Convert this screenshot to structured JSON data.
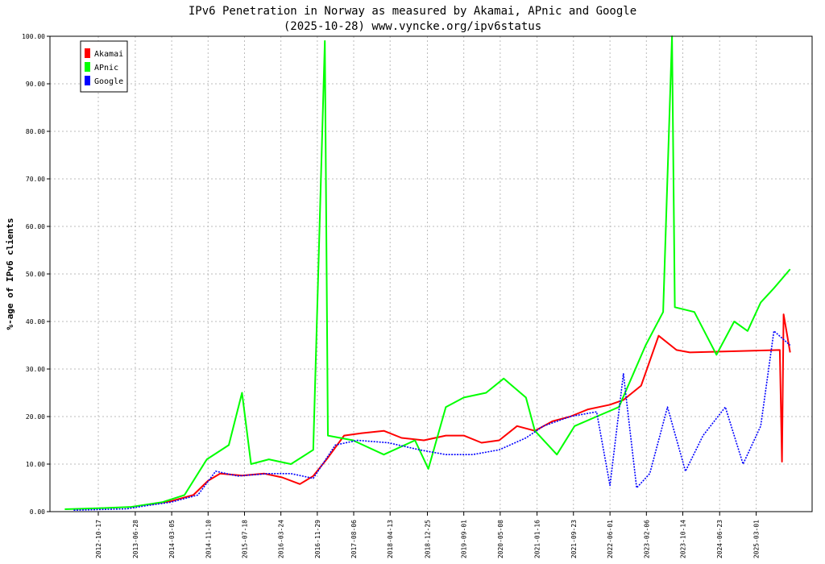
{
  "chart_data": {
    "type": "line",
    "title": "IPv6 Penetration in Norway as measured by Akamai, APnic and Google",
    "subtitle": "(2025-10-28) www.vyncke.org/ipv6status",
    "ylabel": "%-age of IPv6 clients",
    "xlabel": "",
    "ylim": [
      0,
      100
    ],
    "xlim": [
      "2011-11-20",
      "2026-03-20"
    ],
    "grid": true,
    "legend_position": "top-left",
    "y_ticks": [
      "0.00",
      "10.00",
      "20.00",
      "30.00",
      "40.00",
      "50.00",
      "60.00",
      "70.00",
      "80.00",
      "90.00",
      "100.00"
    ],
    "x_ticks": [
      "2012-10-17",
      "2013-06-28",
      "2014-03-05",
      "2014-11-10",
      "2015-07-18",
      "2016-03-24",
      "2016-11-29",
      "2017-08-06",
      "2018-04-13",
      "2018-12-25",
      "2019-09-01",
      "2020-05-08",
      "2021-01-16",
      "2021-09-23",
      "2022-06-01",
      "2023-02-06",
      "2023-10-14",
      "2024-06-23",
      "2025-03-01"
    ],
    "series": [
      {
        "name": "Akamai",
        "color": "#ff0000",
        "points": [
          [
            "2013-10-01",
            1.5
          ],
          [
            "2014-03-01",
            2.2
          ],
          [
            "2014-08-01",
            3.5
          ],
          [
            "2014-11-10",
            6.5
          ],
          [
            "2015-02-01",
            8.0
          ],
          [
            "2015-07-01",
            7.6
          ],
          [
            "2015-12-01",
            8.0
          ],
          [
            "2016-04-01",
            7.2
          ],
          [
            "2016-08-01",
            5.8
          ],
          [
            "2016-11-01",
            7.5
          ],
          [
            "2017-02-01",
            11.0
          ],
          [
            "2017-06-01",
            16.0
          ],
          [
            "2017-10-01",
            16.5
          ],
          [
            "2018-03-01",
            17.0
          ],
          [
            "2018-07-01",
            15.5
          ],
          [
            "2018-12-01",
            15.0
          ],
          [
            "2019-05-01",
            16.0
          ],
          [
            "2019-09-01",
            16.0
          ],
          [
            "2020-01-01",
            14.5
          ],
          [
            "2020-05-01",
            15.0
          ],
          [
            "2020-09-01",
            18.0
          ],
          [
            "2021-01-01",
            17.0
          ],
          [
            "2021-05-01",
            19.0
          ],
          [
            "2021-09-01",
            20.0
          ],
          [
            "2022-01-01",
            21.5
          ],
          [
            "2022-06-01",
            22.5
          ],
          [
            "2022-09-01",
            23.5
          ],
          [
            "2023-01-01",
            26.5
          ],
          [
            "2023-05-01",
            37.0
          ],
          [
            "2023-09-01",
            34.0
          ],
          [
            "2023-12-01",
            33.5
          ],
          [
            "2025-08-10",
            34.0
          ],
          [
            "2025-08-25",
            10.5
          ],
          [
            "2025-09-05",
            41.5
          ],
          [
            "2025-10-20",
            33.5
          ]
        ]
      },
      {
        "name": "APnic",
        "color": "#00ff00",
        "points": [
          [
            "2012-03-01",
            0.5
          ],
          [
            "2012-10-01",
            0.7
          ],
          [
            "2013-06-01",
            1.0
          ],
          [
            "2014-01-01",
            2.0
          ],
          [
            "2014-06-01",
            3.5
          ],
          [
            "2014-11-01",
            11.0
          ],
          [
            "2015-04-01",
            14.0
          ],
          [
            "2015-07-01",
            25.0
          ],
          [
            "2015-09-01",
            10.0
          ],
          [
            "2016-01-01",
            11.0
          ],
          [
            "2016-06-01",
            10.0
          ],
          [
            "2016-11-01",
            13.0
          ],
          [
            "2017-01-20",
            99.0
          ],
          [
            "2017-02-10",
            16.0
          ],
          [
            "2017-08-01",
            15.0
          ],
          [
            "2018-03-01",
            12.0
          ],
          [
            "2018-10-01",
            15.0
          ],
          [
            "2019-01-01",
            9.0
          ],
          [
            "2019-05-01",
            22.0
          ],
          [
            "2019-09-01",
            24.0
          ],
          [
            "2020-02-01",
            25.0
          ],
          [
            "2020-06-01",
            28.0
          ],
          [
            "2020-11-01",
            24.0
          ],
          [
            "2021-01-01",
            17.0
          ],
          [
            "2021-06-01",
            12.0
          ],
          [
            "2021-10-01",
            18.0
          ],
          [
            "2022-03-01",
            20.0
          ],
          [
            "2022-08-01",
            22.0
          ],
          [
            "2023-02-01",
            35.0
          ],
          [
            "2023-06-01",
            42.0
          ],
          [
            "2023-08-01",
            100.0
          ],
          [
            "2023-08-20",
            43.0
          ],
          [
            "2024-01-01",
            42.0
          ],
          [
            "2024-06-01",
            33.0
          ],
          [
            "2024-10-01",
            40.0
          ],
          [
            "2025-01-01",
            38.0
          ],
          [
            "2025-04-01",
            44.0
          ],
          [
            "2025-07-01",
            47.0
          ],
          [
            "2025-10-20",
            51.0
          ]
        ]
      },
      {
        "name": "Google",
        "color": "#0000ff",
        "points": [
          [
            "2012-05-01",
            0.3
          ],
          [
            "2013-05-01",
            0.6
          ],
          [
            "2013-09-01",
            1.2
          ],
          [
            "2014-03-01",
            2.0
          ],
          [
            "2014-09-01",
            3.5
          ],
          [
            "2015-01-01",
            8.5
          ],
          [
            "2015-06-01",
            7.5
          ],
          [
            "2016-01-01",
            8.0
          ],
          [
            "2016-06-01",
            8.0
          ],
          [
            "2016-11-01",
            7.0
          ],
          [
            "2017-04-01",
            14.0
          ],
          [
            "2017-09-01",
            15.0
          ],
          [
            "2018-04-01",
            14.5
          ],
          [
            "2018-11-01",
            13.0
          ],
          [
            "2019-05-01",
            12.0
          ],
          [
            "2019-11-01",
            12.0
          ],
          [
            "2020-05-01",
            13.0
          ],
          [
            "2020-11-01",
            15.5
          ],
          [
            "2021-03-01",
            18.0
          ],
          [
            "2021-09-01",
            20.0
          ],
          [
            "2022-03-01",
            21.0
          ],
          [
            "2022-06-01",
            5.5
          ],
          [
            "2022-09-01",
            29.0
          ],
          [
            "2022-12-01",
            5.0
          ],
          [
            "2023-03-01",
            8.0
          ],
          [
            "2023-07-01",
            22.0
          ],
          [
            "2023-11-01",
            8.5
          ],
          [
            "2024-03-01",
            16.0
          ],
          [
            "2024-08-01",
            22.0
          ],
          [
            "2024-12-01",
            10.0
          ],
          [
            "2025-04-01",
            18.0
          ],
          [
            "2025-07-01",
            38.0
          ],
          [
            "2025-10-20",
            35.0
          ]
        ]
      }
    ]
  }
}
